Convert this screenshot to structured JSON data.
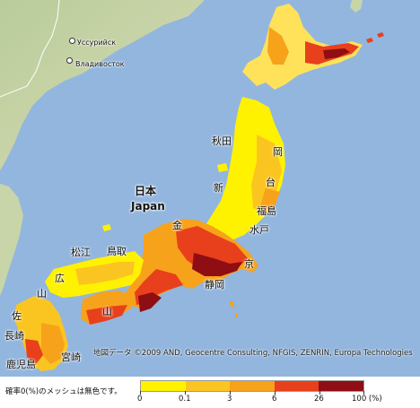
{
  "map": {
    "labels": {
      "ussuriysk": "Уссурийск",
      "vladivostok": "Владивосток",
      "nihon": "日本",
      "japan": "Japan",
      "akita": "秋田",
      "morioka": "岡",
      "sendai": "台",
      "fukushima": "福島",
      "mito": "水戸",
      "tokyo": "京",
      "shizuoka": "静岡",
      "matsue": "松江",
      "tottori": "鳥取",
      "hiroshima": "広",
      "yamaguchi": "山",
      "saga": "佐",
      "nagasaki": "長崎",
      "miyazaki": "宮崎",
      "kagoshima": "鹿児島",
      "yama2": "山",
      "hokuriku": "金",
      "niigata": "新"
    },
    "attribution": "地図データ ©2009 AND, Geocentre Consulting, NFGIS, ZENRIN, Europa Technologies",
    "colors": {
      "sea": "#93b6de",
      "land": "#c3d2a4",
      "yellow": "#fff200",
      "orange": "#f7a21b",
      "red": "#e8401c",
      "darkred": "#8e0e14"
    }
  },
  "legend": {
    "note": "確率0(%)のメッシュは無色です。",
    "ticks": [
      "0",
      "0.1",
      "3",
      "6",
      "26",
      "100 (%)"
    ],
    "colors": [
      "#fff200",
      "#fbc521",
      "#f7a21b",
      "#e8401c",
      "#8e0e14"
    ]
  }
}
